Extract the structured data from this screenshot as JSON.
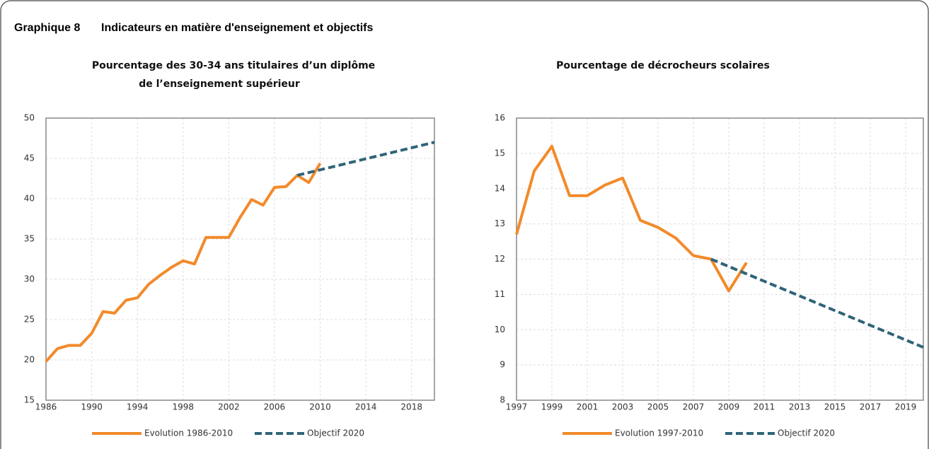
{
  "figure_label": "Graphique 8",
  "figure_title": "Indicateurs en matière d'enseignement et objectifs",
  "chart_data": [
    {
      "type": "line",
      "title": [
        "Pourcentage des 30-34 ans titulaires d’un diplôme",
        "de l’enseignement supérieur"
      ],
      "xlim": [
        1986,
        2020
      ],
      "xticks": [
        1986,
        1990,
        1994,
        1998,
        2002,
        2006,
        2010,
        2014,
        2018
      ],
      "ylim": [
        15,
        50
      ],
      "yticks": [
        15,
        20,
        25,
        30,
        35,
        40,
        45,
        50
      ],
      "grid": true,
      "legend": "bottom",
      "series": [
        {
          "name": "Evolution 1986-2010",
          "color": "#f28a2a",
          "dashed": false,
          "x": [
            1986,
            1987,
            1988,
            1989,
            1990,
            1991,
            1992,
            1993,
            1994,
            1995,
            1996,
            1997,
            1998,
            1999,
            2000,
            2001,
            2002,
            2003,
            2004,
            2005,
            2006,
            2007,
            2008,
            2009,
            2010
          ],
          "values": [
            19.8,
            21.4,
            21.8,
            21.8,
            23.3,
            26.0,
            25.8,
            27.4,
            27.7,
            29.4,
            30.5,
            31.5,
            32.3,
            31.9,
            35.2,
            35.2,
            35.2,
            37.7,
            39.9,
            39.2,
            41.4,
            41.5,
            42.9,
            42.0,
            44.4
          ]
        },
        {
          "name": "Objectif 2020",
          "color": "#2f6478",
          "dashed": true,
          "x": [
            2008,
            2020
          ],
          "values": [
            42.9,
            47.0
          ]
        }
      ]
    },
    {
      "type": "line",
      "title": [
        "Pourcentage de décrocheurs scolaires"
      ],
      "xlim": [
        1997,
        2020
      ],
      "xticks": [
        1997,
        1999,
        2001,
        2003,
        2005,
        2007,
        2009,
        2011,
        2013,
        2015,
        2017,
        2019
      ],
      "ylim": [
        8,
        16
      ],
      "yticks": [
        8,
        9,
        10,
        11,
        12,
        13,
        14,
        15,
        16
      ],
      "grid": true,
      "legend": "bottom",
      "series": [
        {
          "name": "Evolution 1997-2010",
          "color": "#f28a2a",
          "dashed": false,
          "x": [
            1997,
            1998,
            1999,
            2000,
            2001,
            2002,
            2003,
            2004,
            2005,
            2006,
            2007,
            2008,
            2009,
            2010
          ],
          "values": [
            12.7,
            14.5,
            15.2,
            13.8,
            13.8,
            14.1,
            14.3,
            13.1,
            12.9,
            12.6,
            12.1,
            12.0,
            11.1,
            11.9
          ]
        },
        {
          "name": "Objectif 2020",
          "color": "#2f6478",
          "dashed": true,
          "x": [
            2008,
            2020
          ],
          "values": [
            12.0,
            9.5
          ]
        }
      ]
    }
  ]
}
